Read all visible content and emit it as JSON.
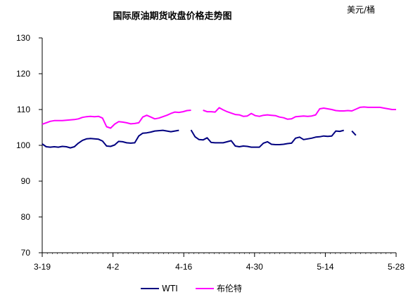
{
  "chart_data": {
    "type": "line",
    "title": "国际原油期货收盘价格走势图",
    "unit_label": "美元/桶",
    "xlabel": "",
    "ylabel": "",
    "ylim": [
      70,
      130
    ],
    "yticks": [
      70,
      80,
      90,
      100,
      110,
      120,
      130
    ],
    "xticks": [
      "3-19",
      "4-2",
      "4-16",
      "4-30",
      "5-14",
      "5-28"
    ],
    "x_range_days": [
      0,
      70
    ],
    "grid": false,
    "legend": "bottom",
    "series": [
      {
        "name": "WTI",
        "color": "#000080",
        "segments": [
          [
            [
              0,
              100.4
            ],
            [
              1,
              99.6
            ],
            [
              2,
              99.5
            ],
            [
              3,
              99.6
            ],
            [
              4,
              99.5
            ],
            [
              5,
              99.7
            ],
            [
              6,
              99.6
            ],
            [
              7,
              99.3
            ],
            [
              8,
              99.6
            ],
            [
              9,
              100.6
            ],
            [
              10,
              101.4
            ],
            [
              11,
              101.8
            ],
            [
              12,
              101.9
            ],
            [
              13,
              101.8
            ],
            [
              14,
              101.7
            ],
            [
              15,
              101.2
            ],
            [
              16,
              99.8
            ],
            [
              17,
              99.7
            ],
            [
              18,
              100.1
            ],
            [
              19,
              101.1
            ],
            [
              20,
              101.0
            ],
            [
              21,
              100.7
            ],
            [
              22,
              100.6
            ],
            [
              23,
              100.7
            ],
            [
              24,
              102.6
            ],
            [
              25,
              103.4
            ],
            [
              26,
              103.5
            ],
            [
              27,
              103.7
            ],
            [
              28,
              104.0
            ],
            [
              29,
              104.1
            ],
            [
              30,
              104.2
            ],
            [
              31,
              104.0
            ],
            [
              32,
              103.8
            ],
            [
              33,
              104.0
            ],
            [
              34,
              104.2
            ]
          ],
          [
            [
              37,
              104.3
            ],
            [
              38,
              102.4
            ],
            [
              39,
              101.6
            ],
            [
              40,
              101.5
            ],
            [
              41,
              102.1
            ],
            [
              42,
              100.8
            ],
            [
              43,
              100.7
            ],
            [
              44,
              100.7
            ],
            [
              45,
              100.7
            ],
            [
              46,
              101.0
            ],
            [
              47,
              101.3
            ],
            [
              48,
              99.8
            ],
            [
              49,
              99.6
            ],
            [
              50,
              99.8
            ],
            [
              51,
              99.7
            ],
            [
              52,
              99.5
            ],
            [
              53,
              99.5
            ],
            [
              54,
              99.5
            ],
            [
              55,
              100.6
            ],
            [
              56,
              101.0
            ],
            [
              57,
              100.3
            ],
            [
              58,
              100.2
            ],
            [
              59,
              100.2
            ],
            [
              60,
              100.3
            ],
            [
              61,
              100.5
            ],
            [
              62,
              100.6
            ],
            [
              63,
              102.0
            ],
            [
              64,
              102.3
            ],
            [
              65,
              101.6
            ],
            [
              66,
              101.8
            ],
            [
              67,
              102.0
            ],
            [
              68,
              102.3
            ],
            [
              69,
              102.4
            ],
            [
              70,
              102.6
            ],
            [
              71,
              102.5
            ],
            [
              72,
              102.6
            ],
            [
              73,
              104.0
            ],
            [
              74,
              103.9
            ],
            [
              75,
              104.2
            ]
          ],
          [
            [
              77,
              104.0
            ],
            [
              78,
              102.8
            ]
          ]
        ]
      },
      {
        "name": "布伦特",
        "color": "#FF00FF",
        "segments": [
          [
            [
              0,
              105.9
            ],
            [
              1,
              106.3
            ],
            [
              2,
              106.7
            ],
            [
              3,
              106.9
            ],
            [
              4,
              106.9
            ],
            [
              5,
              106.9
            ],
            [
              6,
              107.0
            ],
            [
              7,
              107.1
            ],
            [
              8,
              107.2
            ],
            [
              9,
              107.4
            ],
            [
              10,
              107.8
            ],
            [
              11,
              108.0
            ],
            [
              12,
              108.1
            ],
            [
              13,
              108.0
            ],
            [
              14,
              108.1
            ],
            [
              15,
              107.6
            ],
            [
              16,
              105.2
            ],
            [
              17,
              104.8
            ],
            [
              18,
              105.9
            ],
            [
              19,
              106.6
            ],
            [
              20,
              106.5
            ],
            [
              21,
              106.3
            ],
            [
              22,
              106.0
            ],
            [
              23,
              106.1
            ],
            [
              24,
              106.3
            ],
            [
              25,
              107.9
            ],
            [
              26,
              108.4
            ],
            [
              27,
              107.9
            ],
            [
              28,
              107.4
            ],
            [
              29,
              107.6
            ],
            [
              30,
              108.0
            ],
            [
              31,
              108.4
            ],
            [
              32,
              108.9
            ],
            [
              33,
              109.3
            ],
            [
              34,
              109.2
            ],
            [
              35,
              109.4
            ],
            [
              36,
              109.7
            ],
            [
              37,
              109.8
            ]
          ],
          [
            [
              40,
              109.8
            ],
            [
              41,
              109.4
            ],
            [
              42,
              109.4
            ],
            [
              43,
              109.3
            ],
            [
              44,
              110.5
            ],
            [
              45,
              109.9
            ],
            [
              46,
              109.4
            ],
            [
              47,
              109.0
            ],
            [
              48,
              108.6
            ],
            [
              49,
              108.5
            ],
            [
              50,
              108.1
            ],
            [
              51,
              108.2
            ],
            [
              52,
              108.9
            ],
            [
              53,
              108.3
            ],
            [
              54,
              108.1
            ],
            [
              55,
              108.4
            ],
            [
              56,
              108.5
            ],
            [
              57,
              108.4
            ],
            [
              58,
              108.3
            ],
            [
              59,
              107.9
            ],
            [
              60,
              107.7
            ],
            [
              61,
              107.3
            ],
            [
              62,
              107.4
            ],
            [
              63,
              108.0
            ],
            [
              64,
              108.1
            ],
            [
              65,
              108.2
            ],
            [
              66,
              108.1
            ],
            [
              67,
              108.2
            ],
            [
              68,
              108.5
            ],
            [
              69,
              110.2
            ],
            [
              70,
              110.4
            ],
            [
              71,
              110.2
            ],
            [
              72,
              110.0
            ],
            [
              73,
              109.7
            ],
            [
              74,
              109.6
            ],
            [
              75,
              109.6
            ],
            [
              76,
              109.7
            ],
            [
              77,
              109.6
            ],
            [
              78,
              110.1
            ],
            [
              79,
              110.6
            ],
            [
              80,
              110.7
            ],
            [
              81,
              110.6
            ],
            [
              82,
              110.6
            ],
            [
              83,
              110.6
            ],
            [
              84,
              110.6
            ],
            [
              85,
              110.4
            ],
            [
              86,
              110.2
            ],
            [
              87,
              110.0
            ],
            [
              88,
              110.0
            ]
          ]
        ]
      }
    ]
  }
}
